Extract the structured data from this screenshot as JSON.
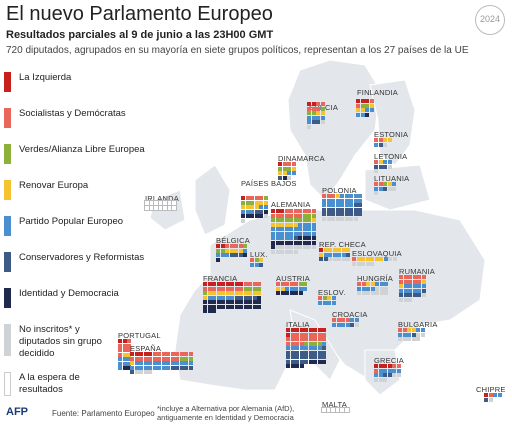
{
  "header": {
    "title": "El nuevo Parlamento Europeo",
    "subtitle": "Resultados parciales al 9 de junio a las 23H00 GMT",
    "description": "720 diputados, agrupados en su mayoría en siete grupos políticos, representan a los 27 países de la UE",
    "badge": "2024"
  },
  "colors": {
    "izquierda": "#c8201d",
    "socialistas": "#e8665a",
    "verdes": "#8bb13a",
    "renovar": "#f4c32f",
    "ppe": "#4a8fcf",
    "conservadores": "#3e5a86",
    "identidad": "#1f2a4e",
    "noinscritos": "#cfd3d6",
    "espera": "#ffffff"
  },
  "legend": [
    {
      "label": "La Izquierda",
      "color": "#c8201d"
    },
    {
      "label": "Socialistas y Demócratas",
      "color": "#e8665a"
    },
    {
      "label": "Verdes/Alianza Libre Europea",
      "color": "#8bb13a"
    },
    {
      "label": "Renovar Europa",
      "color": "#f4c32f"
    },
    {
      "label": "Partido Popular Europeo",
      "color": "#4a8fcf"
    },
    {
      "label": "Conservadores y Reformistas",
      "color": "#3e5a86"
    },
    {
      "label": "Identidad y Democracia",
      "color": "#1f2a4e"
    },
    {
      "label": "No inscritos* y diputados sin grupo decidido",
      "color": "#cfd3d6"
    },
    {
      "label": "A la espera de resultados",
      "color": "#ffffff"
    }
  ],
  "countries": [
    {
      "name": "SUECIA",
      "seats": [
        [
          "izquierda",
          2
        ],
        [
          "socialistas",
          5
        ],
        [
          "verdes",
          3
        ],
        [
          "renovar",
          2
        ],
        [
          "ppe",
          5
        ],
        [
          "conservadores",
          2
        ],
        [
          "noinscritos",
          2
        ]
      ]
    },
    {
      "name": "FINLANDIA",
      "seats": [
        [
          "izquierda",
          3
        ],
        [
          "socialistas",
          2
        ],
        [
          "verdes",
          2
        ],
        [
          "renovar",
          3
        ],
        [
          "ppe",
          4
        ],
        [
          "identidad",
          1
        ]
      ]
    },
    {
      "name": "ESTONIA",
      "seats": [
        [
          "socialistas",
          2
        ],
        [
          "renovar",
          2
        ],
        [
          "ppe",
          1
        ],
        [
          "conservadores",
          1
        ],
        [
          "noinscritos",
          1
        ]
      ]
    },
    {
      "name": "LETONIA",
      "seats": [
        [
          "socialistas",
          1
        ],
        [
          "renovar",
          1
        ],
        [
          "ppe",
          2
        ],
        [
          "conservadores",
          3
        ],
        [
          "noinscritos",
          2
        ]
      ]
    },
    {
      "name": "LITUANIA",
      "seats": [
        [
          "socialistas",
          2
        ],
        [
          "verdes",
          1
        ],
        [
          "renovar",
          1
        ],
        [
          "ppe",
          3
        ],
        [
          "conservadores",
          1
        ],
        [
          "noinscritos",
          3
        ]
      ]
    },
    {
      "name": "DINAMARCA",
      "seats": [
        [
          "izquierda",
          1
        ],
        [
          "socialistas",
          3
        ],
        [
          "verdes",
          3
        ],
        [
          "renovar",
          3
        ],
        [
          "ppe",
          2
        ],
        [
          "conservadores",
          1
        ],
        [
          "identidad",
          1
        ],
        [
          "noinscritos",
          1
        ]
      ]
    },
    {
      "name": "IRLANDA",
      "seats": [
        [
          "espera",
          14
        ]
      ]
    },
    {
      "name": "PAÍSES BAJOS",
      "seats": [
        [
          "izquierda",
          1
        ],
        [
          "socialistas",
          4
        ],
        [
          "verdes",
          4
        ],
        [
          "renovar",
          7
        ],
        [
          "ppe",
          5
        ],
        [
          "conservadores",
          2
        ],
        [
          "identidad",
          6
        ],
        [
          "noinscritos",
          2
        ]
      ]
    },
    {
      "name": "ALEMANIA",
      "seats": [
        [
          "izquierda",
          3
        ],
        [
          "socialistas",
          14
        ],
        [
          "verdes",
          12
        ],
        [
          "renovar",
          7
        ],
        [
          "ppe",
          29
        ],
        [
          "conservadores",
          1
        ],
        [
          "identidad",
          15
        ],
        [
          "noinscritos",
          15
        ]
      ]
    },
    {
      "name": "POLONIA",
      "seats": [
        [
          "socialistas",
          3
        ],
        [
          "renovar",
          1
        ],
        [
          "ppe",
          21
        ],
        [
          "conservadores",
          20
        ],
        [
          "noinscritos",
          8
        ]
      ]
    },
    {
      "name": "BÉLGICA",
      "seats": [
        [
          "izquierda",
          2
        ],
        [
          "socialistas",
          4
        ],
        [
          "verdes",
          3
        ],
        [
          "renovar",
          4
        ],
        [
          "ppe",
          4
        ],
        [
          "conservadores",
          3
        ],
        [
          "identidad",
          2
        ]
      ]
    },
    {
      "name": "LUX.",
      "seats": [
        [
          "socialistas",
          1
        ],
        [
          "verdes",
          1
        ],
        [
          "renovar",
          1
        ],
        [
          "ppe",
          2
        ],
        [
          "conservadores",
          1
        ]
      ]
    },
    {
      "name": "REP. CHECA",
      "seats": [
        [
          "izquierda",
          1
        ],
        [
          "renovar",
          7
        ],
        [
          "ppe",
          5
        ],
        [
          "conservadores",
          3
        ],
        [
          "noinscritos",
          5
        ]
      ]
    },
    {
      "name": "ESLOVAQUIA",
      "seats": [
        [
          "socialistas",
          1
        ],
        [
          "renovar",
          6
        ],
        [
          "ppe",
          1
        ],
        [
          "noinscritos",
          7
        ]
      ]
    },
    {
      "name": "FRANCIA",
      "seats": [
        [
          "izquierda",
          9
        ],
        [
          "socialistas",
          13
        ],
        [
          "verdes",
          5
        ],
        [
          "renovar",
          13
        ],
        [
          "ppe",
          6
        ],
        [
          "conservadores",
          5
        ],
        [
          "identidad",
          30
        ]
      ]
    },
    {
      "name": "AUSTRIA",
      "seats": [
        [
          "socialistas",
          5
        ],
        [
          "verdes",
          2
        ],
        [
          "renovar",
          2
        ],
        [
          "ppe",
          5
        ],
        [
          "identidad",
          6
        ]
      ]
    },
    {
      "name": "HUNGRÍA",
      "seats": [
        [
          "socialistas",
          2
        ],
        [
          "renovar",
          2
        ],
        [
          "ppe",
          7
        ],
        [
          "noinscritos",
          10
        ]
      ]
    },
    {
      "name": "RUMANIA",
      "seats": [
        [
          "socialistas",
          11
        ],
        [
          "renovar",
          2
        ],
        [
          "ppe",
          10
        ],
        [
          "conservadores",
          6
        ],
        [
          "noinscritos",
          4
        ]
      ]
    },
    {
      "name": "ESLOV.",
      "seats": [
        [
          "socialistas",
          1
        ],
        [
          "verdes",
          1
        ],
        [
          "renovar",
          1
        ],
        [
          "ppe",
          5
        ]
      ]
    },
    {
      "name": "CROACIA",
      "seats": [
        [
          "socialistas",
          4
        ],
        [
          "ppe",
          6
        ],
        [
          "conservadores",
          1
        ],
        [
          "noinscritos",
          1
        ]
      ]
    },
    {
      "name": "PORTUGAL",
      "seats": [
        [
          "izquierda",
          2
        ],
        [
          "socialistas",
          8
        ],
        [
          "renovar",
          2
        ],
        [
          "ppe",
          7
        ],
        [
          "identidad",
          2
        ]
      ]
    },
    {
      "name": "ESPAÑA",
      "seats": [
        [
          "izquierda",
          5
        ],
        [
          "socialistas",
          20
        ],
        [
          "verdes",
          3
        ],
        [
          "renovar",
          1
        ],
        [
          "ppe",
          22
        ],
        [
          "conservadores",
          6
        ],
        [
          "noinscritos",
          4
        ]
      ]
    },
    {
      "name": "ITALIA",
      "seats": [
        [
          "izquierda",
          10
        ],
        [
          "socialistas",
          21
        ],
        [
          "verdes",
          4
        ],
        [
          "ppe",
          9
        ],
        [
          "conservadores",
          24
        ],
        [
          "identidad",
          8
        ]
      ]
    },
    {
      "name": "BULGARIA",
      "seats": [
        [
          "socialistas",
          2
        ],
        [
          "renovar",
          2
        ],
        [
          "ppe",
          5
        ],
        [
          "conservadores",
          1
        ],
        [
          "noinscritos",
          7
        ]
      ]
    },
    {
      "name": "GRECIA",
      "seats": [
        [
          "izquierda",
          4
        ],
        [
          "socialistas",
          3
        ],
        [
          "ppe",
          7
        ],
        [
          "conservadores",
          2
        ],
        [
          "noinscritos",
          5
        ]
      ]
    },
    {
      "name": "MALTA",
      "seats": [
        [
          "espera",
          6
        ]
      ]
    },
    {
      "name": "CHIPRE",
      "seats": [
        [
          "izquierda",
          1
        ],
        [
          "socialistas",
          1
        ],
        [
          "ppe",
          2
        ],
        [
          "conservadores",
          1
        ],
        [
          "noinscritos",
          1
        ]
      ]
    }
  ],
  "footer": {
    "logo": "AFP",
    "source": "Fuente: Parlamento Europeo",
    "footnote_line1": "*incluye a Alternativa por Alemania (AfD),",
    "footnote_line2": "antiguamente en Identidad y Democracia"
  }
}
